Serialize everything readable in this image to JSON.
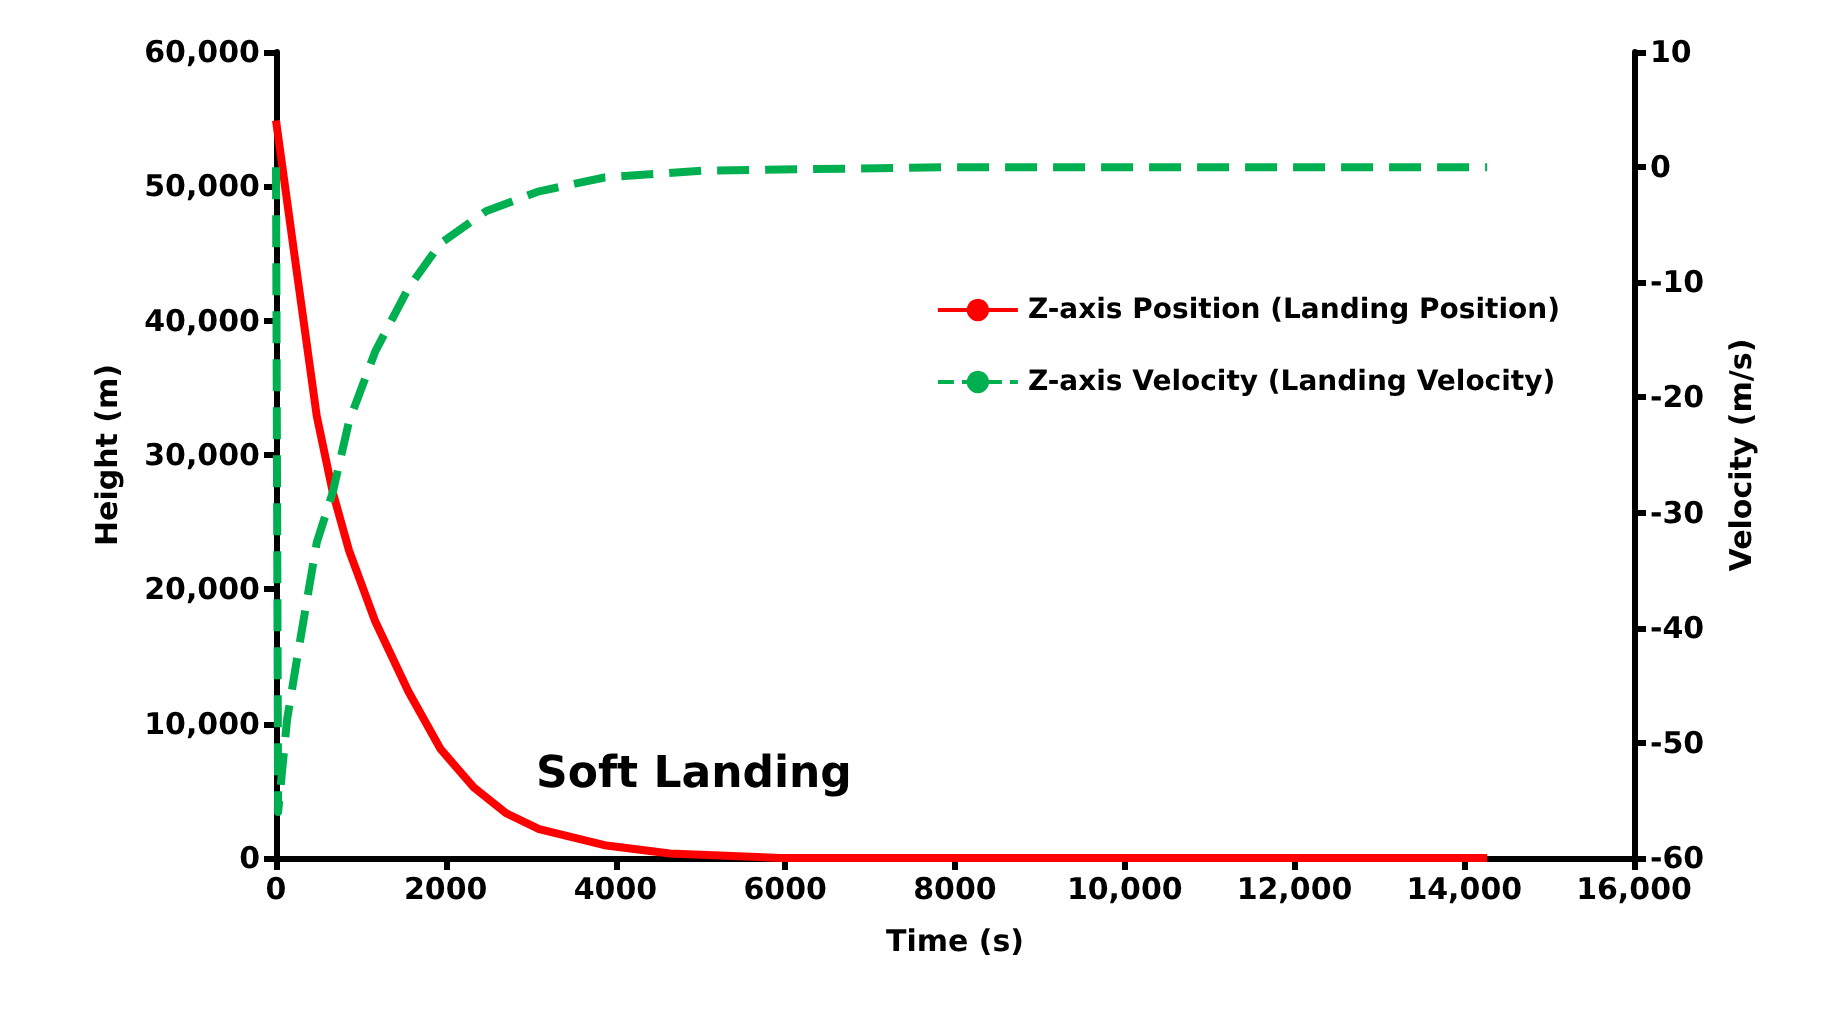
{
  "chart_data": {
    "type": "line",
    "xlabel": "Time (s)",
    "ylabel": "Height (m)",
    "y2label": "Velocity (m/s)",
    "annotations": [
      "Soft Landing"
    ],
    "legend": "right",
    "grid": false,
    "marker": "none",
    "xlim": [
      0,
      16000
    ],
    "xticks": [
      0,
      2000,
      4000,
      6000,
      8000,
      {
        "value": 10000,
        "label": "10,000"
      },
      {
        "value": 12000,
        "label": "12,000"
      },
      {
        "value": 14000,
        "label": "14,000"
      },
      {
        "value": 16000,
        "label": "16,000"
      }
    ],
    "ylim": [
      0,
      60000
    ],
    "yticks": [
      0,
      {
        "value": 10000,
        "label": "10,000"
      },
      {
        "value": 20000,
        "label": "20,000"
      },
      {
        "value": 30000,
        "label": "30,000"
      },
      {
        "value": 40000,
        "label": "40,000"
      },
      {
        "value": 50000,
        "label": "50,000"
      },
      {
        "value": 60000,
        "label": "60,000"
      }
    ],
    "y2lim": [
      -60,
      10
    ],
    "y2ticks": [
      -60,
      -50,
      -40,
      -30,
      -20,
      -10,
      0,
      10
    ],
    "series": [
      {
        "name": "Z-axis Position (Landing Position)",
        "color": "#ff0000",
        "line_style": "solid",
        "x": [
          0,
          250,
          480,
          670,
          860,
          1170,
          1560,
          1940,
          2330,
          2710,
          3100,
          3870,
          4640,
          5950,
          8000,
          10000,
          12000,
          14270
        ],
        "values": [
          54900,
          43400,
          32900,
          27200,
          22900,
          17600,
          12400,
          8100,
          5250,
          3340,
          2150,
          950,
          330,
          0,
          0,
          0,
          0,
          0
        ]
      },
      {
        "name": "Z-axis Velocity (Landing Velocity)",
        "color": "#00b050",
        "line_style": "dashed",
        "axis": "y2",
        "x": [
          0,
          25,
          130,
          250,
          480,
          670,
          860,
          1170,
          1560,
          1940,
          2480,
          3100,
          3870,
          5030,
          8000,
          10000,
          12000,
          14270
        ],
        "values": [
          0,
          -56,
          -48,
          -42.6,
          -32.6,
          -28.2,
          -22.1,
          -16,
          -10.5,
          -6.6,
          -3.8,
          -2.1,
          -0.9,
          -0.3,
          0,
          0,
          0,
          0
        ]
      }
    ]
  }
}
